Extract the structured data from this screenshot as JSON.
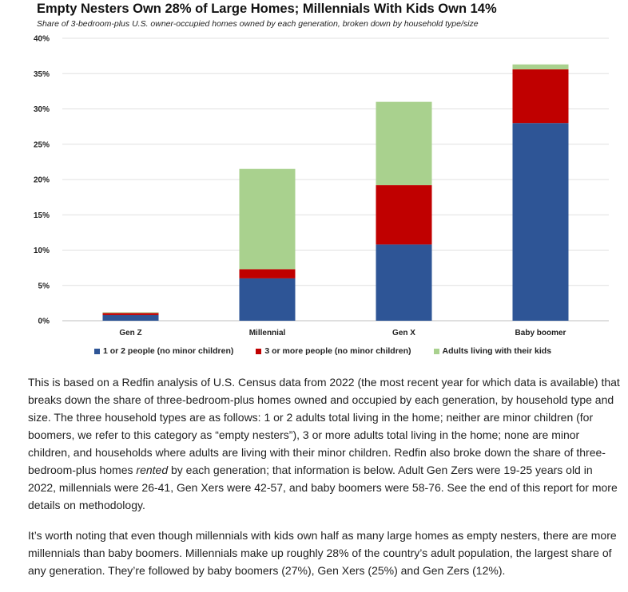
{
  "chart_data": {
    "type": "stacked-bar",
    "title": "Empty Nesters Own 28% of Large Homes; Millennials With Kids Own 14%",
    "subtitle": "Share of 3-bedroom-plus U.S. owner-occupied homes owned by each generation, broken down by household type/size",
    "categories": [
      "Gen Z",
      "Millennial",
      "Gen X",
      "Baby boomer"
    ],
    "ylim": [
      0,
      40
    ],
    "yticks": [
      0,
      5,
      10,
      15,
      20,
      25,
      30,
      35,
      40
    ],
    "ytick_labels": [
      "0%",
      "5%",
      "10%",
      "15%",
      "20%",
      "25%",
      "30%",
      "35%",
      "40%"
    ],
    "grid": true,
    "legend_position": "bottom",
    "series": [
      {
        "name": "1 or 2 people (no minor children)",
        "color": "#2E5596",
        "values": [
          0.8,
          6.0,
          10.8,
          28.0
        ]
      },
      {
        "name": "3 or more people (no minor children)",
        "color": "#C00000",
        "values": [
          0.3,
          1.3,
          8.4,
          7.6
        ]
      },
      {
        "name": "Adults living with their kids",
        "color": "#A9D18E",
        "values": [
          0.1,
          14.2,
          11.8,
          0.7
        ]
      }
    ]
  },
  "article": {
    "paragraph1_a": "This is based on a Redfin analysis of U.S. Census data from 2022 (the most recent year for which data is available) that breaks down the share of three-bedroom-plus homes owned and occupied by each generation, by household type and size. The three household types are as follows: 1 or 2 adults total living in the home; neither are minor children (for boomers, we refer to this category as “empty nesters”), 3 or more adults total living in the home; none are minor children, and households where adults are living with their minor children. Redfin also broke down the share of three-bedroom-plus homes ",
    "paragraph1_em": "rented",
    "paragraph1_b": " by each generation; that information is below. Adult Gen Zers were 19-25 years old in 2022, millennials were 26-41, Gen Xers were 42-57, and baby boomers were 58-76. See the end of this report for more details on methodology.",
    "paragraph2": "It’s worth noting that even though millennials with kids own half as many large homes as empty nesters, there are more millennials than baby boomers. Millennials make up roughly 28% of the country’s adult population, the largest share of any generation. They’re followed by baby boomers (27%), Gen Xers (25%) and Gen Zers (12%)."
  }
}
